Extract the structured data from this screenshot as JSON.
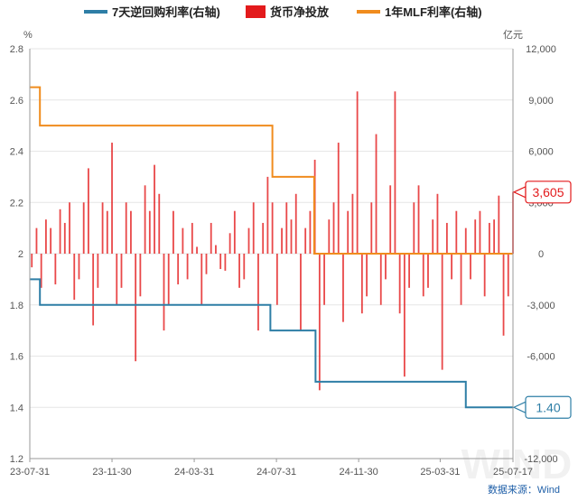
{
  "chart_data": {
    "type": "bar+line",
    "legend": [
      {
        "key": "reverse_repo",
        "label": "7天逆回购利率(右轴)",
        "color": "#2e7ea6"
      },
      {
        "key": "net_injection",
        "label": "货币净投放",
        "color": "#e31a1c"
      },
      {
        "key": "mlf",
        "label": "1年MLF利率(右轴)",
        "color": "#f08c1e"
      }
    ],
    "left_axis": {
      "unit": "%",
      "min": 1.2,
      "max": 2.8,
      "ticks": [
        "1.2",
        "1.4",
        "1.6",
        "1.8",
        "2",
        "2.2",
        "2.4",
        "2.6",
        "2.8"
      ]
    },
    "right_axis": {
      "unit": "亿元",
      "min": -12000,
      "max": 12000,
      "ticks": [
        "-12,000",
        "-9,000",
        "-6,000",
        "-3,000",
        "0",
        "3,000",
        "6,000",
        "9,000",
        "12,000"
      ]
    },
    "x_axis": {
      "start": "2023-07-31",
      "end": "2025-07-17",
      "ticks": [
        {
          "date": "2023-07-31",
          "label": "23-07-31"
        },
        {
          "date": "2023-11-30",
          "label": "23-11-30"
        },
        {
          "date": "2024-03-31",
          "label": "24-03-31"
        },
        {
          "date": "2024-07-31",
          "label": "24-07-31"
        },
        {
          "date": "2024-11-30",
          "label": "24-11-30"
        },
        {
          "date": "2025-03-31",
          "label": "25-03-31"
        },
        {
          "date": "2025-07-17",
          "label": "25-07-17"
        }
      ]
    },
    "series_mlf": [
      {
        "date": "2023-07-31",
        "value": 2.65
      },
      {
        "date": "2023-08-15",
        "value": 2.5
      },
      {
        "date": "2024-07-25",
        "value": 2.3
      },
      {
        "date": "2024-09-25",
        "value": 2.0
      },
      {
        "date": "2025-07-17",
        "value": 2.0
      }
    ],
    "series_reverse_repo": [
      {
        "date": "2023-07-31",
        "value": 1.9
      },
      {
        "date": "2023-08-15",
        "value": 1.8
      },
      {
        "date": "2024-07-22",
        "value": 1.7
      },
      {
        "date": "2024-09-27",
        "value": 1.5
      },
      {
        "date": "2025-05-08",
        "value": 1.4
      },
      {
        "date": "2025-07-17",
        "value": 1.4
      }
    ],
    "series_net_injection": [
      {
        "date": "2023-08-03",
        "value": -800
      },
      {
        "date": "2023-08-10",
        "value": 1500
      },
      {
        "date": "2023-08-17",
        "value": -2000
      },
      {
        "date": "2023-08-24",
        "value": 2000
      },
      {
        "date": "2023-08-31",
        "value": 1500
      },
      {
        "date": "2023-09-07",
        "value": -1800
      },
      {
        "date": "2023-09-14",
        "value": 2600
      },
      {
        "date": "2023-09-21",
        "value": 1800
      },
      {
        "date": "2023-09-28",
        "value": 3000
      },
      {
        "date": "2023-10-05",
        "value": -2700
      },
      {
        "date": "2023-10-12",
        "value": -1500
      },
      {
        "date": "2023-10-19",
        "value": 3000
      },
      {
        "date": "2023-10-26",
        "value": 5000
      },
      {
        "date": "2023-11-02",
        "value": -4200
      },
      {
        "date": "2023-11-09",
        "value": -2000
      },
      {
        "date": "2023-11-16",
        "value": 3000
      },
      {
        "date": "2023-11-23",
        "value": 2500
      },
      {
        "date": "2023-11-30",
        "value": 6500
      },
      {
        "date": "2023-12-07",
        "value": -3000
      },
      {
        "date": "2023-12-14",
        "value": -2000
      },
      {
        "date": "2023-12-21",
        "value": 3000
      },
      {
        "date": "2023-12-28",
        "value": 2500
      },
      {
        "date": "2024-01-04",
        "value": -6300
      },
      {
        "date": "2024-01-11",
        "value": -2500
      },
      {
        "date": "2024-01-18",
        "value": 4000
      },
      {
        "date": "2024-01-25",
        "value": 2500
      },
      {
        "date": "2024-02-01",
        "value": 5200
      },
      {
        "date": "2024-02-08",
        "value": 3500
      },
      {
        "date": "2024-02-15",
        "value": -4500
      },
      {
        "date": "2024-02-22",
        "value": -3000
      },
      {
        "date": "2024-02-29",
        "value": 2500
      },
      {
        "date": "2024-03-07",
        "value": -1800
      },
      {
        "date": "2024-03-14",
        "value": 1500
      },
      {
        "date": "2024-03-21",
        "value": -1500
      },
      {
        "date": "2024-03-28",
        "value": 1800
      },
      {
        "date": "2024-04-04",
        "value": 400
      },
      {
        "date": "2024-04-11",
        "value": -3000
      },
      {
        "date": "2024-04-18",
        "value": -1200
      },
      {
        "date": "2024-04-25",
        "value": 1800
      },
      {
        "date": "2024-05-02",
        "value": 500
      },
      {
        "date": "2024-05-09",
        "value": -900
      },
      {
        "date": "2024-05-16",
        "value": -1000
      },
      {
        "date": "2024-05-23",
        "value": 1200
      },
      {
        "date": "2024-05-30",
        "value": 2500
      },
      {
        "date": "2024-06-06",
        "value": -2000
      },
      {
        "date": "2024-06-13",
        "value": -1500
      },
      {
        "date": "2024-06-20",
        "value": 1500
      },
      {
        "date": "2024-06-27",
        "value": 3000
      },
      {
        "date": "2024-07-04",
        "value": -4500
      },
      {
        "date": "2024-07-11",
        "value": 1800
      },
      {
        "date": "2024-07-18",
        "value": 4500
      },
      {
        "date": "2024-07-25",
        "value": 3000
      },
      {
        "date": "2024-08-01",
        "value": -3000
      },
      {
        "date": "2024-08-08",
        "value": 1500
      },
      {
        "date": "2024-08-15",
        "value": 3000
      },
      {
        "date": "2024-08-22",
        "value": 2000
      },
      {
        "date": "2024-08-29",
        "value": 3500
      },
      {
        "date": "2024-09-05",
        "value": -4500
      },
      {
        "date": "2024-09-12",
        "value": 1500
      },
      {
        "date": "2024-09-19",
        "value": 2500
      },
      {
        "date": "2024-09-26",
        "value": 5500
      },
      {
        "date": "2024-10-03",
        "value": -8000
      },
      {
        "date": "2024-10-10",
        "value": -3000
      },
      {
        "date": "2024-10-17",
        "value": 2000
      },
      {
        "date": "2024-10-24",
        "value": 3000
      },
      {
        "date": "2024-10-31",
        "value": 6500
      },
      {
        "date": "2024-11-07",
        "value": -4000
      },
      {
        "date": "2024-11-14",
        "value": 2500
      },
      {
        "date": "2024-11-21",
        "value": 3500
      },
      {
        "date": "2024-11-28",
        "value": 9500
      },
      {
        "date": "2024-12-05",
        "value": -3500
      },
      {
        "date": "2024-12-12",
        "value": -2500
      },
      {
        "date": "2024-12-19",
        "value": 3000
      },
      {
        "date": "2024-12-26",
        "value": 7000
      },
      {
        "date": "2025-01-02",
        "value": -3000
      },
      {
        "date": "2025-01-09",
        "value": -1500
      },
      {
        "date": "2025-01-16",
        "value": 4000
      },
      {
        "date": "2025-01-23",
        "value": 9500
      },
      {
        "date": "2025-01-30",
        "value": -3500
      },
      {
        "date": "2025-02-06",
        "value": -7200
      },
      {
        "date": "2025-02-13",
        "value": -2000
      },
      {
        "date": "2025-02-20",
        "value": 3000
      },
      {
        "date": "2025-02-27",
        "value": 4000
      },
      {
        "date": "2025-03-06",
        "value": -2500
      },
      {
        "date": "2025-03-13",
        "value": -2000
      },
      {
        "date": "2025-03-20",
        "value": 2000
      },
      {
        "date": "2025-03-27",
        "value": 3500
      },
      {
        "date": "2025-04-03",
        "value": -6800
      },
      {
        "date": "2025-04-10",
        "value": 1800
      },
      {
        "date": "2025-04-17",
        "value": -1500
      },
      {
        "date": "2025-04-24",
        "value": 2500
      },
      {
        "date": "2025-05-01",
        "value": -3000
      },
      {
        "date": "2025-05-08",
        "value": 1500
      },
      {
        "date": "2025-05-15",
        "value": -1500
      },
      {
        "date": "2025-05-22",
        "value": 2000
      },
      {
        "date": "2025-05-29",
        "value": 2500
      },
      {
        "date": "2025-06-05",
        "value": -2500
      },
      {
        "date": "2025-06-12",
        "value": 1800
      },
      {
        "date": "2025-06-19",
        "value": 2000
      },
      {
        "date": "2025-06-26",
        "value": 3400
      },
      {
        "date": "2025-07-03",
        "value": -4800
      },
      {
        "date": "2025-07-10",
        "value": -2500
      },
      {
        "date": "2025-07-17",
        "value": 3605
      }
    ],
    "callouts": [
      {
        "series": "net_injection",
        "text": "3,605",
        "value": 3605,
        "axis": "right"
      },
      {
        "series": "reverse_repo",
        "text": "1.40",
        "value": 1.4,
        "axis": "left"
      }
    ],
    "source": "数据来源：Wind",
    "watermark": "WIND"
  }
}
